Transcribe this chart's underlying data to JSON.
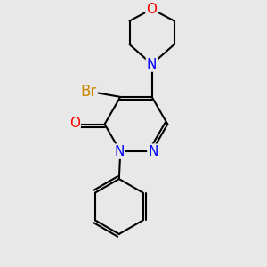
{
  "bg_color": "#e8e8e8",
  "bond_color": "#000000",
  "atom_colors": {
    "N": "#0000ff",
    "O": "#ff0000",
    "Br": "#cc8800",
    "C": "#000000"
  },
  "font_size": 11,
  "line_width": 1.5,
  "figsize": [
    3.0,
    3.0
  ],
  "dpi": 100
}
